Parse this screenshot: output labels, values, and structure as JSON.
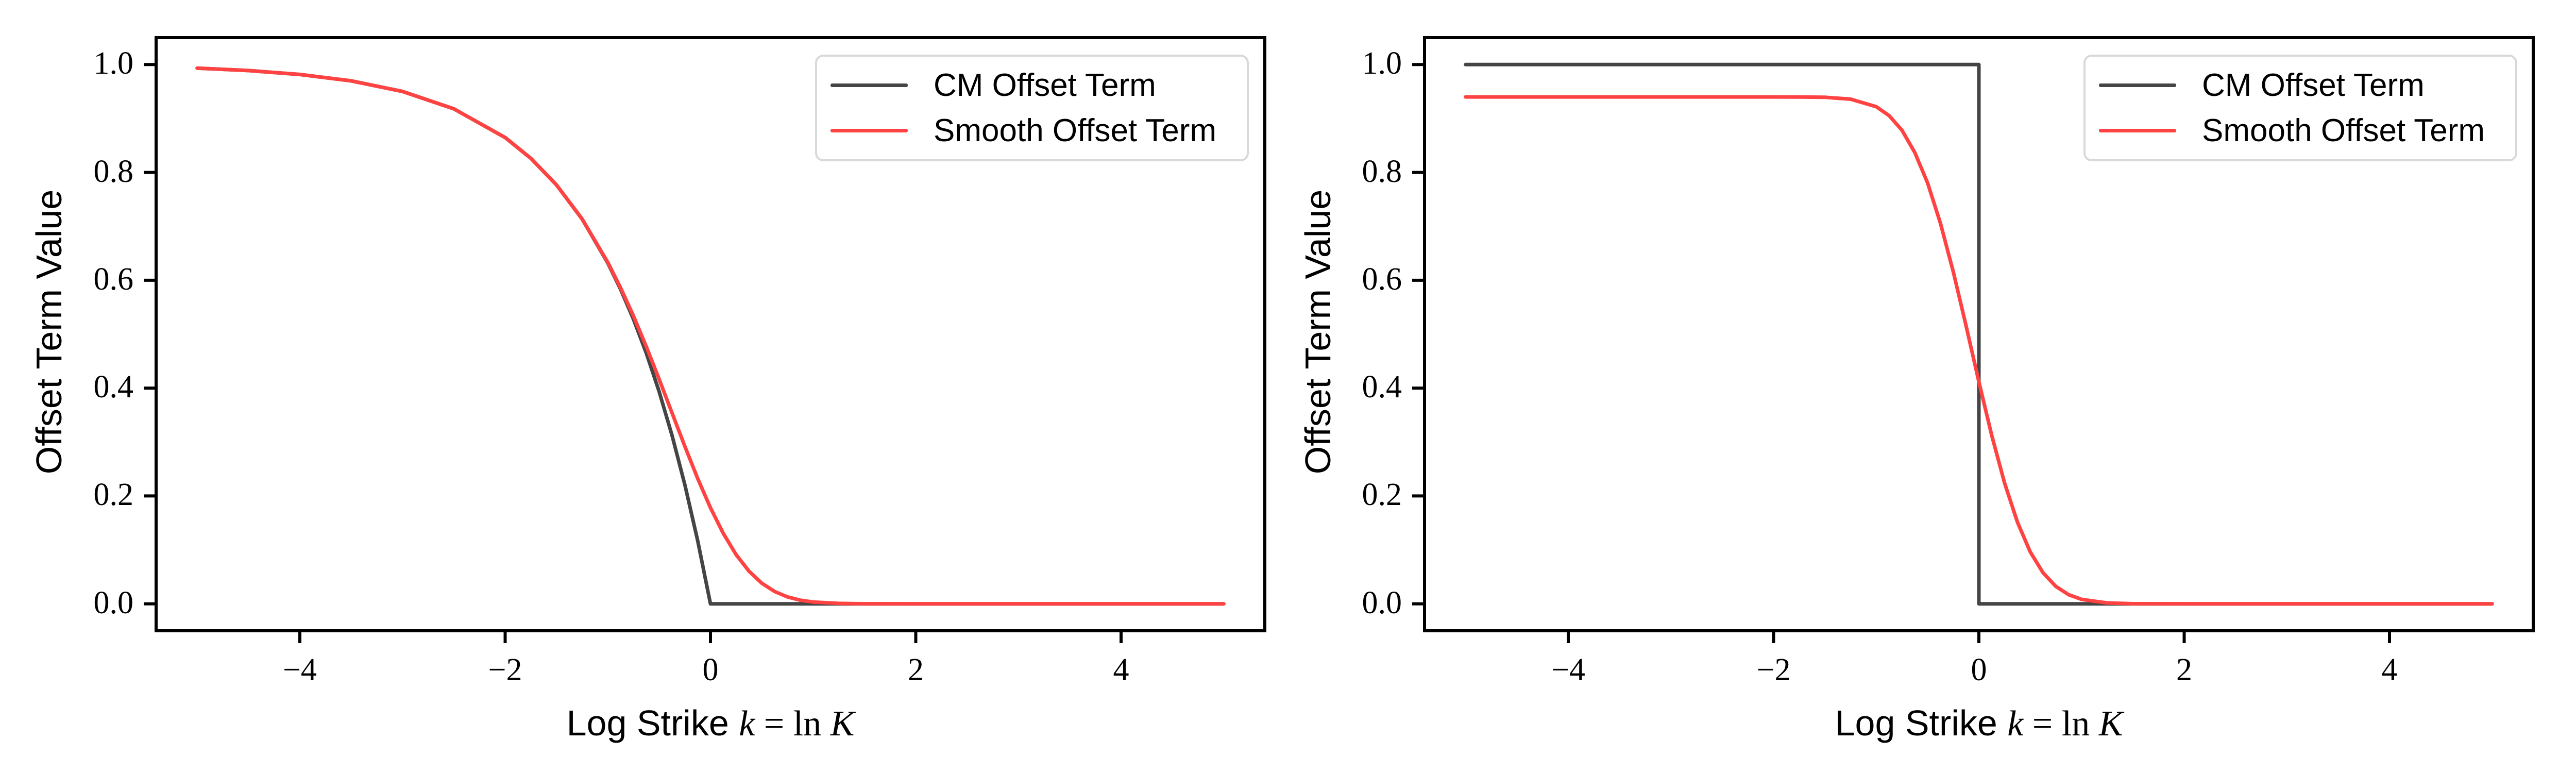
{
  "figure": {
    "background": "#ffffff",
    "title": ""
  },
  "colors": {
    "cm_line": "#454545",
    "smooth_line": "#ff4242",
    "axis": "#000000",
    "legend_border": "#d9d9d9",
    "text": "#000000"
  },
  "chart_data": [
    {
      "id": "left",
      "type": "line",
      "title": "",
      "xlabel": "Log Strike k = ln K",
      "xlabel_parts": [
        "Log Strike ",
        "k",
        " = ",
        "ln",
        " K"
      ],
      "ylabel": "Offset Term Value",
      "xlim": [
        -5.4,
        5.4
      ],
      "ylim": [
        -0.05,
        1.05
      ],
      "xticks": [
        -4,
        -2,
        0,
        2,
        4
      ],
      "xtick_labels": [
        "−4",
        "−2",
        "0",
        "2",
        "4"
      ],
      "yticks": [
        0,
        0.2,
        0.4,
        0.6,
        0.8,
        1.0
      ],
      "ytick_labels": [
        "0.0",
        "0.2",
        "0.4",
        "0.6",
        "0.8",
        "1.0"
      ],
      "grid": false,
      "legend": {
        "position": "upper right",
        "entries": [
          "CM Offset Term",
          "Smooth Offset Term"
        ]
      },
      "x": [
        -5,
        -4.5,
        -4,
        -3.5,
        -3,
        -2.5,
        -2,
        -1.75,
        -1.5,
        -1.25,
        -1,
        -0.875,
        -0.75,
        -0.625,
        -0.5,
        -0.375,
        -0.25,
        -0.125,
        0,
        0.125,
        0.25,
        0.375,
        0.5,
        0.625,
        0.75,
        0.875,
        1,
        1.25,
        1.5,
        2,
        3,
        4,
        5
      ],
      "series": [
        {
          "key": "cm-offset-term",
          "name": "CM Offset Term",
          "color": "#454545",
          "y": [
            0.9933,
            0.9889,
            0.9817,
            0.9698,
            0.9502,
            0.9179,
            0.8647,
            0.8262,
            0.7769,
            0.7135,
            0.6321,
            0.5831,
            0.5276,
            0.4647,
            0.3935,
            0.3127,
            0.2212,
            0.1175,
            0,
            0,
            0,
            0,
            0,
            0,
            0,
            0,
            0,
            0,
            0,
            0,
            0,
            0,
            0
          ]
        },
        {
          "key": "smooth-offset-term",
          "name": "Smooth Offset Term",
          "color": "#ff4242",
          "y": [
            0.9933,
            0.9889,
            0.9817,
            0.9698,
            0.9502,
            0.9179,
            0.8647,
            0.8262,
            0.7769,
            0.7137,
            0.6333,
            0.5859,
            0.5337,
            0.4769,
            0.4166,
            0.3543,
            0.2922,
            0.2326,
            0.1781,
            0.1305,
            0.0912,
            0.0606,
            0.0382,
            0.0228,
            0.0128,
            0.0067,
            0.0033,
            0.0007,
            0.0001,
            0,
            0,
            0,
            0
          ]
        }
      ]
    },
    {
      "id": "right",
      "type": "line",
      "title": "",
      "xlabel": "Log Strike k = ln K",
      "xlabel_parts": [
        "Log Strike ",
        "k",
        " = ",
        "ln",
        " K"
      ],
      "ylabel": "Offset Term Value",
      "xlim": [
        -5.4,
        5.4
      ],
      "ylim": [
        -0.05,
        1.05
      ],
      "xticks": [
        -4,
        -2,
        0,
        2,
        4
      ],
      "xtick_labels": [
        "−4",
        "−2",
        "0",
        "2",
        "4"
      ],
      "yticks": [
        0,
        0.2,
        0.4,
        0.6,
        0.8,
        1.0
      ],
      "ytick_labels": [
        "0.0",
        "0.2",
        "0.4",
        "0.6",
        "0.8",
        "1.0"
      ],
      "grid": false,
      "legend": {
        "position": "upper right",
        "entries": [
          "CM Offset Term",
          "Smooth Offset Term"
        ]
      },
      "x": [
        -5,
        -4.5,
        -4,
        -3.5,
        -3,
        -2.5,
        -2,
        -1.75,
        -1.5,
        -1.25,
        -1,
        -0.875,
        -0.75,
        -0.625,
        -0.5,
        -0.375,
        -0.25,
        -0.125,
        0,
        0.125,
        0.25,
        0.375,
        0.5,
        0.625,
        0.75,
        0.875,
        1,
        1.25,
        1.5,
        2,
        3,
        4,
        5
      ],
      "series": [
        {
          "key": "cm-offset-term",
          "name": "CM Offset Term",
          "color": "#454545",
          "points": [
            [
              -5,
              1
            ],
            [
              0,
              1
            ],
            [
              0,
              0
            ],
            [
              5,
              0
            ]
          ]
        },
        {
          "key": "smooth-offset-term",
          "name": "Smooth Offset Term",
          "color": "#ff4242",
          "y": [
            0.94,
            0.94,
            0.94,
            0.94,
            0.94,
            0.94,
            0.94,
            0.9399,
            0.9393,
            0.9359,
            0.9219,
            0.9055,
            0.8784,
            0.8372,
            0.7806,
            0.706,
            0.6161,
            0.5157,
            0.4117,
            0.3125,
            0.2242,
            0.1517,
            0.0964,
            0.0576,
            0.0322,
            0.0168,
            0.0082,
            0.0016,
            0.0002,
            0,
            0,
            0,
            0
          ]
        }
      ]
    }
  ]
}
